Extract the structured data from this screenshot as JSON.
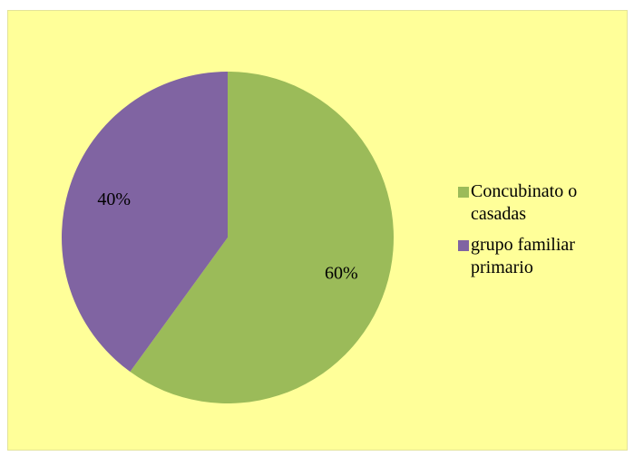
{
  "chart_data": {
    "type": "pie",
    "start": "12 o'clock, clockwise",
    "categories": [
      "Concubinato o casadas",
      "grupo familiar primario"
    ],
    "values": [
      60,
      40
    ],
    "labels": [
      "60%",
      "40%"
    ],
    "colors": [
      "#9bbb59",
      "#8064a2"
    ],
    "legend_position": "right"
  },
  "colors": {
    "chart_background": "#ffff99"
  },
  "legend": {
    "items": [
      {
        "label": "Concubinato o casadas",
        "color": "#9bbb59"
      },
      {
        "label": "grupo familiar primario",
        "color": "#8064a2"
      }
    ]
  }
}
